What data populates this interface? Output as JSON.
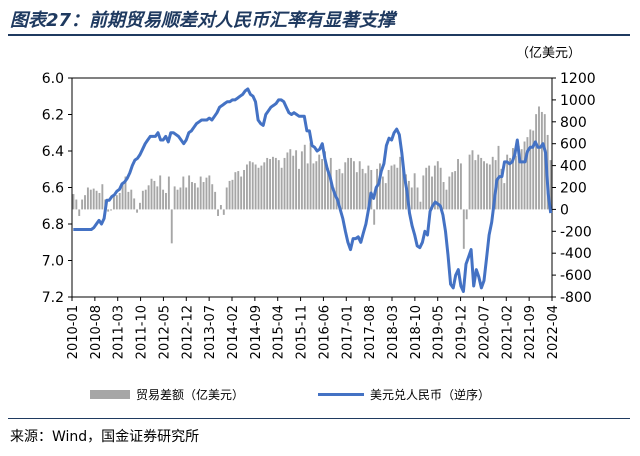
{
  "title": "图表27：前期贸易顺差对人民币汇率有显著支撑",
  "source": "来源：Wind，国金证券研究所",
  "chart_data": {
    "type": "bar",
    "right_axis_unit": "（亿美元）",
    "y_left": {
      "min": 6.0,
      "max": 7.2,
      "reversed": true,
      "ticks": [
        "6.0",
        "6.2",
        "6.4",
        "6.6",
        "6.8",
        "7.0",
        "7.2"
      ]
    },
    "y_right": {
      "min": -800,
      "max": 1200,
      "ticks": [
        "1200",
        "1000",
        "800",
        "600",
        "400",
        "200",
        "0",
        "-200",
        "-400",
        "-600",
        "-800"
      ]
    },
    "x_tick_labels": [
      "2010-01",
      "2010-08",
      "2011-03",
      "2011-10",
      "2012-05",
      "2012-12",
      "2013-07",
      "2014-02",
      "2014-09",
      "2015-04",
      "2015-11",
      "2016-06",
      "2017-01",
      "2017-08",
      "2018-03",
      "2018-10",
      "2019-05",
      "2019-12",
      "2020-07",
      "2021-02",
      "2021-09",
      "2022-04"
    ],
    "series": [
      {
        "name": "贸易差额（亿美元）",
        "type": "bar",
        "color": "#a6a6a6",
        "values": [
          140,
          90,
          -60,
          90,
          130,
          200,
          180,
          190,
          170,
          150,
          230,
          90,
          -20,
          -10,
          140,
          130,
          150,
          240,
          300,
          160,
          180,
          100,
          -30,
          60,
          170,
          180,
          220,
          280,
          260,
          210,
          310,
          180,
          150,
          300,
          -310,
          210,
          180,
          200,
          300,
          200,
          310,
          250,
          240,
          200,
          300,
          250,
          290,
          310,
          230,
          160,
          -60,
          40,
          -50,
          200,
          260,
          270,
          340,
          350,
          300,
          360,
          410,
          440,
          430,
          410,
          380,
          400,
          430,
          470,
          460,
          480,
          470,
          450,
          380,
          470,
          520,
          550,
          490,
          540,
          370,
          530,
          590,
          420,
          610,
          420,
          440,
          500,
          460,
          530,
          380,
          470,
          200,
          360,
          370,
          330,
          430,
          470,
          470,
          440,
          340,
          440,
          370,
          330,
          400,
          360,
          -140,
          370,
          420,
          300,
          240,
          360,
          400,
          410,
          380,
          480,
          390,
          320,
          260,
          200,
          330,
          200,
          70,
          310,
          380,
          400,
          300,
          400,
          440,
          380,
          250,
          180,
          300,
          340,
          350,
          460,
          420,
          -360,
          -90,
          500,
          540,
          450,
          500,
          470,
          440,
          420,
          410,
          480,
          450,
          580,
          370,
          240,
          500,
          470,
          560,
          490,
          580,
          550,
          620,
          660,
          730,
          720,
          870,
          940,
          890,
          870,
          680,
          450
        ]
      },
      {
        "name": "美元兑人民币（逆序）",
        "type": "line",
        "color": "#4472c4",
        "values": [
          6.83,
          6.83,
          6.83,
          6.83,
          6.83,
          6.83,
          6.83,
          6.83,
          6.82,
          6.8,
          6.78,
          6.8,
          6.77,
          6.67,
          6.67,
          6.65,
          6.64,
          6.62,
          6.61,
          6.58,
          6.57,
          6.55,
          6.52,
          6.48,
          6.45,
          6.44,
          6.42,
          6.39,
          6.36,
          6.34,
          6.32,
          6.32,
          6.32,
          6.3,
          6.34,
          6.34,
          6.32,
          6.35,
          6.3,
          6.3,
          6.31,
          6.32,
          6.34,
          6.36,
          6.34,
          6.3,
          6.29,
          6.27,
          6.25,
          6.24,
          6.23,
          6.23,
          6.23,
          6.22,
          6.23,
          6.21,
          6.19,
          6.16,
          6.15,
          6.14,
          6.13,
          6.13,
          6.12,
          6.12,
          6.11,
          6.1,
          6.09,
          6.07,
          6.06,
          6.09,
          6.1,
          6.13,
          6.23,
          6.25,
          6.26,
          6.2,
          6.18,
          6.16,
          6.15,
          6.14,
          6.12,
          6.12,
          6.13,
          6.16,
          6.19,
          6.2,
          6.19,
          6.2,
          6.21,
          6.21,
          6.21,
          6.29,
          6.29,
          6.37,
          6.38,
          6.4,
          6.39,
          6.36,
          6.44,
          6.5,
          6.54,
          6.6,
          6.64,
          6.67,
          6.72,
          6.77,
          6.84,
          6.9,
          6.94,
          6.88,
          6.88,
          6.87,
          6.9,
          6.85,
          6.8,
          6.72,
          6.63,
          6.66,
          6.6,
          6.58,
          6.51,
          6.47,
          6.37,
          6.33,
          6.34,
          6.3,
          6.28,
          6.31,
          6.41,
          6.54,
          6.62,
          6.74,
          6.81,
          6.86,
          6.92,
          6.93,
          6.9,
          6.84,
          6.86,
          6.73,
          6.7,
          6.68,
          6.69,
          6.7,
          6.75,
          6.84,
          6.97,
          7.13,
          7.15,
          7.08,
          7.05,
          7.14,
          7.17,
          7.02,
          6.98,
          6.94,
          7.14,
          7.05,
          7.09,
          7.15,
          7.11,
          6.99,
          6.86,
          6.79,
          6.68,
          6.56,
          6.54,
          6.54,
          6.46,
          6.46,
          6.47,
          6.46,
          6.42,
          6.34,
          6.46,
          6.46,
          6.46,
          6.4,
          6.38,
          6.38,
          6.35,
          6.38,
          6.38,
          6.36,
          6.41,
          6.63,
          6.74
        ]
      }
    ]
  }
}
